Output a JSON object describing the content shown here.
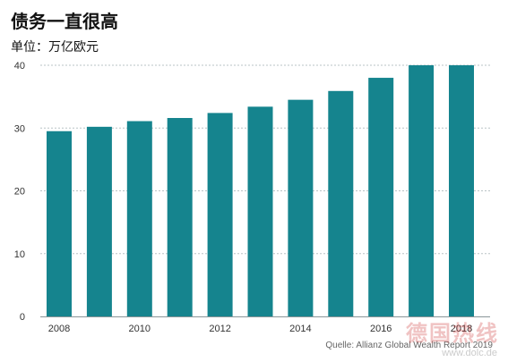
{
  "chart_data": {
    "type": "bar",
    "title": "债务一直很高",
    "subtitle": "单位：万亿欧元",
    "categories": [
      "2008",
      "2009",
      "2010",
      "2011",
      "2012",
      "2013",
      "2014",
      "2015",
      "2016",
      "2017",
      "2018"
    ],
    "x_tick_labels": [
      "2008",
      "2010",
      "2012",
      "2014",
      "2016",
      "2018"
    ],
    "values": [
      29.5,
      30.2,
      31.1,
      31.6,
      32.4,
      33.4,
      34.5,
      35.9,
      38.0,
      40.0,
      40.0
    ],
    "ylim": [
      0,
      40
    ],
    "yticks": [
      0,
      10,
      20,
      30,
      40
    ],
    "grid": true,
    "bar_color": "#15848e",
    "source": "Quelle: Allianz Global Wealth Report 2019"
  },
  "watermark": {
    "text": "德国热线",
    "url": "www.dolc.de"
  }
}
